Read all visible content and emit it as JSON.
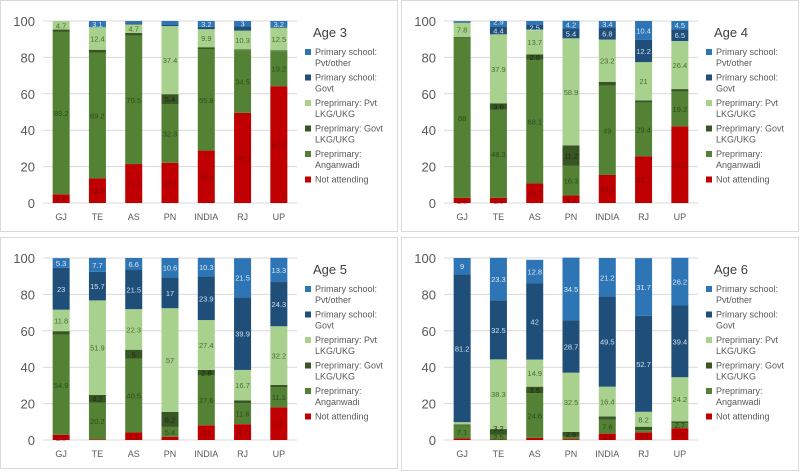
{
  "chart_data": [
    {
      "type": "bar",
      "stacked": true,
      "title": "Age 3",
      "categories": [
        "GJ",
        "TE",
        "AS",
        "PN",
        "INDIA",
        "RJ",
        "UP"
      ],
      "ylim": [
        0,
        100
      ],
      "yticks": [
        0,
        20,
        40,
        60,
        80,
        100
      ],
      "grid": true,
      "legend": "right",
      "series": [
        {
          "name": "Not attending",
          "color": "#c00000",
          "values": [
            4.8,
            13.5,
            21.4,
            22.1,
            28.8,
            49.5,
            64.2
          ]
        },
        {
          "name": "Preprimary: Anganwadi",
          "color": "#548235",
          "values": [
            89.2,
            69.2,
            70.5,
            32.3,
            55.8,
            34.5,
            19.2
          ]
        },
        {
          "name": "Preprimary: Govt LKG/UKG",
          "color": "#375623",
          "values": [
            1.3,
            1.5,
            1.5,
            5.4,
            1,
            0.4,
            0.4
          ]
        },
        {
          "name": "Preprimary: Pvt LKG/UKG",
          "color": "#a9d18e",
          "values": [
            4.7,
            12.4,
            4.7,
            37.4,
            9.9,
            10.3,
            12.5
          ]
        },
        {
          "name": "Primary school: Govt",
          "color": "#1f4e79",
          "values": [
            0,
            0.3,
            0.7,
            0.6,
            1.3,
            2.3,
            0.5
          ]
        },
        {
          "name": "Primary school: Pvt/other",
          "color": "#2e75b6",
          "values": [
            0,
            3.1,
            1.2,
            2.2,
            3.2,
            3,
            3.2
          ]
        }
      ]
    },
    {
      "type": "bar",
      "stacked": true,
      "title": "Age 4",
      "categories": [
        "GJ",
        "TE",
        "AS",
        "PN",
        "INDIA",
        "RJ",
        "UP"
      ],
      "ylim": [
        0,
        100
      ],
      "yticks": [
        0,
        20,
        40,
        60,
        80,
        100
      ],
      "grid": true,
      "legend": "right",
      "series": [
        {
          "name": "Not attending",
          "color": "#c00000",
          "values": [
            2.8,
            2.9,
            10.7,
            4.1,
            15.4,
            25.7,
            42.1
          ]
        },
        {
          "name": "Preprimary: Anganwadi",
          "color": "#548235",
          "values": [
            88,
            48.3,
            68.1,
            16.3,
            49,
            29.4,
            19.2
          ]
        },
        {
          "name": "Preprimary: Govt LKG/UKG",
          "color": "#375623",
          "values": [
            0.5,
            3.6,
            2.8,
            11.2,
            2.2,
            1.3,
            1.3
          ]
        },
        {
          "name": "Preprimary: Pvt LKG/UKG",
          "color": "#a9d18e",
          "values": [
            7.8,
            37.9,
            13.7,
            58.9,
            23.2,
            21,
            26.4
          ]
        },
        {
          "name": "Primary school: Govt",
          "color": "#1f4e79",
          "values": [
            0.5,
            4.4,
            2.5,
            5.4,
            6.8,
            12.2,
            6.5
          ]
        },
        {
          "name": "Primary school: Pvt/other",
          "color": "#2e75b6",
          "values": [
            0.4,
            2.9,
            2.2,
            4.2,
            3.4,
            10.4,
            4.5
          ]
        }
      ]
    },
    {
      "type": "bar",
      "stacked": true,
      "title": "Age 5",
      "categories": [
        "GJ",
        "TE",
        "AS",
        "PN",
        "INDIA",
        "RJ",
        "UP"
      ],
      "ylim": [
        0,
        100
      ],
      "yticks": [
        0,
        20,
        40,
        60,
        80,
        100
      ],
      "grid": true,
      "legend": "right",
      "series": [
        {
          "name": "Not attending",
          "color": "#c00000",
          "values": [
            2.9,
            0.4,
            4.1,
            1.8,
            8.1,
            8.7,
            18
          ]
        },
        {
          "name": "Preprimary: Anganwadi",
          "color": "#548235",
          "values": [
            54.9,
            20.2,
            40.5,
            5.4,
            27.6,
            11.6,
            11.1
          ]
        },
        {
          "name": "Preprimary: Govt LKG/UKG",
          "color": "#375623",
          "values": [
            2,
            4.2,
            5,
            8.2,
            2.8,
            1.5,
            1.2
          ]
        },
        {
          "name": "Preprimary: Pvt LKG/UKG",
          "color": "#a9d18e",
          "values": [
            11.8,
            51.9,
            22.3,
            57,
            27.4,
            16.7,
            32.2
          ]
        },
        {
          "name": "Primary school: Govt",
          "color": "#1f4e79",
          "values": [
            23,
            15.7,
            21.5,
            17,
            23.9,
            39.9,
            24.3
          ]
        },
        {
          "name": "Primary school: Pvt/other",
          "color": "#2e75b6",
          "values": [
            5.3,
            7.7,
            6.6,
            10.6,
            10.3,
            21.5,
            13.3
          ]
        }
      ]
    },
    {
      "type": "bar",
      "stacked": true,
      "title": "Age 6",
      "categories": [
        "GJ",
        "TE",
        "AS",
        "PN",
        "INDIA",
        "RJ",
        "UP"
      ],
      "ylim": [
        0,
        100
      ],
      "yticks": [
        0,
        20,
        40,
        60,
        80,
        100
      ],
      "grid": true,
      "legend": "right",
      "series": [
        {
          "name": "Not attending",
          "color": "#c00000",
          "values": [
            0.8,
            0.3,
            1.2,
            0.5,
            3.5,
            4.2,
            6.5
          ]
        },
        {
          "name": "Preprimary: Anganwadi",
          "color": "#548235",
          "values": [
            7.1,
            2.5,
            24.6,
            1.4,
            7.6,
            1.2,
            2.7
          ]
        },
        {
          "name": "Preprimary: Govt LKG/UKG",
          "color": "#375623",
          "values": [
            0.6,
            3.2,
            3.5,
            2.6,
            1.8,
            1.9,
            1.1
          ]
        },
        {
          "name": "Preprimary: Pvt LKG/UKG",
          "color": "#a9d18e",
          "values": [
            1.3,
            38.3,
            14.9,
            32.5,
            16.4,
            8.2,
            24.2
          ]
        },
        {
          "name": "Primary school: Govt",
          "color": "#1f4e79",
          "values": [
            81.2,
            32.5,
            42,
            28.7,
            49.5,
            52.7,
            39.4
          ]
        },
        {
          "name": "Primary school: Pvt/other",
          "color": "#2e75b6",
          "values": [
            9,
            23.3,
            12.8,
            34.5,
            21.2,
            31.7,
            26.2
          ]
        }
      ]
    }
  ]
}
